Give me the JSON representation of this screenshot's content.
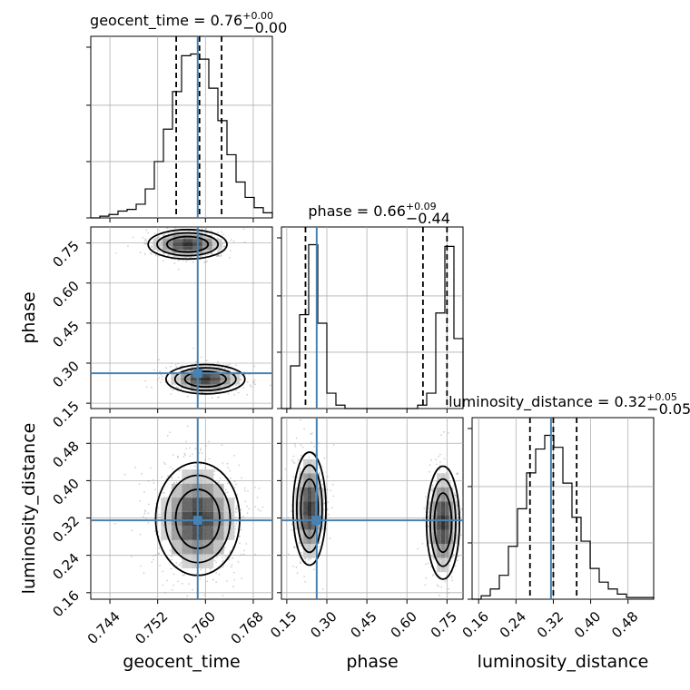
{
  "truth": {
    "geocent_time": 0.7587,
    "phase": 0.262,
    "luminosity_distance": 0.315
  },
  "colors": {
    "truth": "#4682b4",
    "hist": "#000000",
    "points": "#9a9a9a"
  },
  "titles": {
    "geocent_time": {
      "text": "geocent_time = 0.76",
      "sup": "+0.00",
      "sub": "−0.00"
    },
    "phase": {
      "text": "phase = 0.66",
      "sup": "+0.09",
      "sub": "−0.44"
    },
    "luminosity_distance": {
      "text": "luminosity_distance = 0.32",
      "sup": "+0.05",
      "sub": "−0.05"
    }
  },
  "axis_labels": {
    "geocent_time": "geocent_time",
    "phase": "phase",
    "luminosity_distance": "luminosity_distance"
  },
  "chart_data": {
    "type": "corner",
    "parameters": [
      "geocent_time",
      "phase",
      "luminosity_distance"
    ],
    "ranges": {
      "geocent_time": [
        0.7408,
        0.7712
      ],
      "phase": [
        0.13,
        0.81
      ],
      "luminosity_distance": [
        0.146,
        0.535
      ]
    },
    "ticks": {
      "geocent_time": [
        0.744,
        0.752,
        0.76,
        0.768
      ],
      "phase": [
        0.15,
        0.3,
        0.45,
        0.6,
        0.75
      ],
      "luminosity_distance": [
        0.16,
        0.24,
        0.32,
        0.4,
        0.48
      ]
    },
    "tick_labels": {
      "geocent_time": [
        "0.744",
        "0.752",
        "0.760",
        "0.768"
      ],
      "phase": [
        "0.15",
        "0.30",
        "0.45",
        "0.60",
        "0.75"
      ],
      "luminosity_distance": [
        "0.16",
        "0.24",
        "0.32",
        "0.40",
        "0.48"
      ]
    },
    "quantiles": {
      "geocent_time": [
        0.7551,
        0.759,
        0.7627
      ],
      "phase": [
        0.22,
        0.66,
        0.75
      ],
      "luminosity_distance": [
        0.27,
        0.32,
        0.37
      ]
    },
    "histograms": {
      "geocent_time": [
        0.0,
        0.01,
        0.02,
        0.04,
        0.05,
        0.08,
        0.17,
        0.33,
        0.52,
        0.74,
        0.95,
        0.96,
        0.93,
        0.76,
        0.57,
        0.37,
        0.21,
        0.12,
        0.06,
        0.03
      ],
      "phase": [
        0.0,
        0.25,
        0.55,
        0.96,
        0.5,
        0.09,
        0.02,
        0.0,
        0.0,
        0.0,
        0.0,
        0.0,
        0.0,
        0.0,
        0.0,
        0.02,
        0.09,
        0.56,
        0.95,
        0.41
      ],
      "luminosity_distance": [
        0.0,
        0.02,
        0.06,
        0.14,
        0.31,
        0.53,
        0.74,
        0.88,
        0.96,
        0.89,
        0.68,
        0.48,
        0.34,
        0.18,
        0.1,
        0.06,
        0.03,
        0.01,
        0.01,
        0.01
      ]
    },
    "grid": true
  }
}
